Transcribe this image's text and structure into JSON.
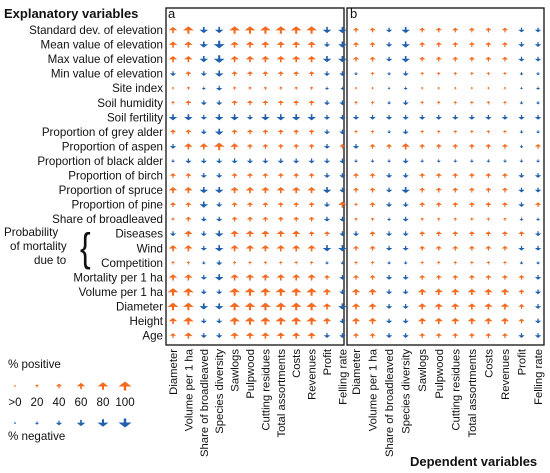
{
  "figure": {
    "y_axis_title": "Explanatory variables",
    "x_axis_title": "Dependent variables",
    "panels": [
      "a",
      "b"
    ],
    "rows": [
      {
        "label": "Standard dev. of elevation"
      },
      {
        "label": "Mean value of elevation"
      },
      {
        "label": "Max value of elevation"
      },
      {
        "label": "Min value of elevation"
      },
      {
        "label": "Site index"
      },
      {
        "label": "Soil humidity"
      },
      {
        "label": "Soil fertility"
      },
      {
        "label": "Proportion of grey alder"
      },
      {
        "label": "Proportion of aspen"
      },
      {
        "label": "Proportion of black alder"
      },
      {
        "label": "Proportion of birch"
      },
      {
        "label": "Proportion of spruce"
      },
      {
        "label": "Proportion of pine"
      },
      {
        "label": "Share of broadleaved"
      },
      {
        "label": "Diseases"
      },
      {
        "label": "Wind"
      },
      {
        "label": "Competition"
      },
      {
        "label": "Mortality per 1 ha"
      },
      {
        "label": "Volume per 1 ha"
      },
      {
        "label": "Diameter"
      },
      {
        "label": "Height"
      },
      {
        "label": "Age"
      }
    ],
    "mortality_group": {
      "line1": "Probability",
      "line2": "of mortality",
      "line3": "due to",
      "brace": "{"
    },
    "columns": [
      "Diameter",
      "Volume per 1 ha",
      "Share of broadleaved",
      "Species diversity",
      "Sawlogs",
      "Pulpwood",
      "Cutting residues",
      "Total assortments",
      "Costs",
      "Revenues",
      "Profit",
      "Felling rate"
    ],
    "legend": {
      "positive_label": "% positive",
      "negative_label": "% negative",
      "levels": [
        ">0",
        "20",
        "40",
        "60",
        "80",
        "100"
      ],
      "positive_color": "#F26B21",
      "negative_color": "#1F5FAD"
    }
  },
  "chart_data": {
    "type": "heatmap",
    "encoding": "arrow glyph: up/orange = % positive, down/blue = % negative; glyph size = percent (0-100)",
    "rows": [
      "Standard dev. of elevation",
      "Mean value of elevation",
      "Max value of elevation",
      "Min value of elevation",
      "Site index",
      "Soil humidity",
      "Soil fertility",
      "Proportion of grey alder",
      "Proportion of aspen",
      "Proportion of black alder",
      "Proportion of birch",
      "Proportion of spruce",
      "Proportion of pine",
      "Share of broadleaved",
      "Diseases",
      "Wind",
      "Competition",
      "Mortality per 1 ha",
      "Volume per 1 ha",
      "Diameter",
      "Height",
      "Age"
    ],
    "columns": [
      "Diameter",
      "Volume per 1 ha",
      "Share of broadleaved",
      "Species diversity",
      "Sawlogs",
      "Pulpwood",
      "Cutting residues",
      "Total assortments",
      "Costs",
      "Revenues",
      "Profit",
      "Felling rate"
    ],
    "panels": [
      {
        "name": "a",
        "values": [
          [
            60,
            80,
            -60,
            -60,
            80,
            80,
            80,
            80,
            80,
            80,
            -60,
            -60
          ],
          [
            60,
            60,
            -60,
            -80,
            60,
            60,
            60,
            60,
            60,
            60,
            -40,
            -60
          ],
          [
            60,
            60,
            -60,
            -80,
            60,
            60,
            60,
            60,
            60,
            60,
            -60,
            -60
          ],
          [
            -40,
            40,
            -40,
            -60,
            40,
            40,
            40,
            40,
            40,
            40,
            -40,
            -40
          ],
          [
            10,
            20,
            -20,
            -40,
            20,
            20,
            20,
            20,
            20,
            20,
            -20,
            -20
          ],
          [
            20,
            40,
            -40,
            -40,
            40,
            40,
            40,
            40,
            40,
            40,
            -40,
            -40
          ],
          [
            -60,
            -60,
            -40,
            -60,
            -60,
            -40,
            -60,
            -60,
            -60,
            -60,
            -40,
            -40
          ],
          [
            40,
            40,
            -40,
            -60,
            40,
            40,
            40,
            40,
            40,
            40,
            -40,
            -40
          ],
          [
            -40,
            60,
            60,
            80,
            60,
            40,
            40,
            40,
            40,
            40,
            -40,
            40
          ],
          [
            -20,
            -40,
            -40,
            -40,
            -40,
            -40,
            -40,
            -40,
            -40,
            -40,
            -40,
            -40
          ],
          [
            40,
            40,
            -40,
            -40,
            40,
            40,
            40,
            40,
            40,
            40,
            -40,
            -40
          ],
          [
            60,
            60,
            -60,
            -60,
            60,
            60,
            60,
            60,
            60,
            60,
            -60,
            -40
          ],
          [
            40,
            40,
            -60,
            -40,
            40,
            40,
            40,
            40,
            40,
            40,
            -40,
            60
          ],
          [
            20,
            40,
            -40,
            -40,
            40,
            40,
            40,
            40,
            40,
            40,
            -40,
            -40
          ],
          [
            -40,
            60,
            -40,
            -60,
            60,
            60,
            60,
            60,
            60,
            40,
            40,
            -40
          ],
          [
            60,
            60,
            -40,
            -60,
            60,
            60,
            60,
            60,
            60,
            60,
            -60,
            -60
          ],
          [
            20,
            20,
            -20,
            -40,
            20,
            20,
            20,
            20,
            20,
            20,
            -20,
            -20
          ],
          [
            60,
            60,
            -40,
            -60,
            60,
            60,
            60,
            60,
            60,
            60,
            40,
            -40
          ],
          [
            80,
            80,
            -40,
            -40,
            80,
            80,
            80,
            80,
            80,
            80,
            60,
            -40
          ],
          [
            80,
            80,
            -60,
            -60,
            80,
            80,
            80,
            80,
            80,
            80,
            60,
            -60
          ],
          [
            60,
            80,
            -40,
            -40,
            80,
            80,
            80,
            80,
            80,
            80,
            60,
            -40
          ],
          [
            40,
            60,
            -40,
            -40,
            60,
            60,
            60,
            60,
            60,
            60,
            -40,
            -40
          ]
        ]
      },
      {
        "name": "b",
        "values": [
          [
            40,
            40,
            -40,
            -60,
            40,
            40,
            40,
            40,
            40,
            40,
            -40,
            -40
          ],
          [
            40,
            40,
            -40,
            -60,
            40,
            40,
            40,
            40,
            40,
            40,
            -40,
            -40
          ],
          [
            40,
            40,
            -40,
            -60,
            40,
            40,
            40,
            40,
            40,
            40,
            -40,
            -40
          ],
          [
            -20,
            20,
            -20,
            -40,
            20,
            20,
            20,
            20,
            20,
            20,
            -20,
            -20
          ],
          [
            10,
            10,
            -10,
            -20,
            10,
            10,
            10,
            10,
            10,
            10,
            -10,
            -20
          ],
          [
            20,
            20,
            -20,
            -40,
            20,
            20,
            20,
            20,
            20,
            20,
            -20,
            -20
          ],
          [
            -40,
            -40,
            -40,
            -40,
            -40,
            -40,
            -40,
            -40,
            -40,
            -40,
            -40,
            -40
          ],
          [
            20,
            20,
            -20,
            -40,
            20,
            20,
            20,
            20,
            20,
            20,
            -20,
            -20
          ],
          [
            -40,
            40,
            40,
            60,
            40,
            40,
            40,
            40,
            40,
            40,
            -20,
            40
          ],
          [
            -20,
            -20,
            -20,
            -40,
            -20,
            -20,
            -20,
            -20,
            -20,
            -20,
            -20,
            -20
          ],
          [
            40,
            40,
            -40,
            -40,
            40,
            40,
            40,
            40,
            40,
            40,
            -40,
            -40
          ],
          [
            40,
            40,
            -40,
            -60,
            40,
            40,
            40,
            40,
            40,
            40,
            -40,
            -40
          ],
          [
            20,
            40,
            -40,
            -40,
            40,
            40,
            40,
            40,
            40,
            40,
            -40,
            40
          ],
          [
            20,
            20,
            -20,
            -40,
            20,
            20,
            20,
            20,
            20,
            20,
            -20,
            -20
          ],
          [
            -40,
            40,
            -40,
            -40,
            40,
            40,
            40,
            40,
            40,
            40,
            40,
            -40
          ],
          [
            40,
            40,
            -40,
            -40,
            40,
            40,
            40,
            40,
            40,
            40,
            -40,
            -40
          ],
          [
            20,
            20,
            -20,
            -20,
            20,
            20,
            20,
            20,
            20,
            20,
            -20,
            -20
          ],
          [
            40,
            40,
            -40,
            -40,
            40,
            40,
            40,
            40,
            40,
            40,
            40,
            -40
          ],
          [
            60,
            60,
            -40,
            -40,
            60,
            60,
            60,
            60,
            60,
            60,
            40,
            -40
          ],
          [
            60,
            60,
            -40,
            -40,
            60,
            60,
            60,
            60,
            60,
            60,
            40,
            -40
          ],
          [
            60,
            60,
            -40,
            -40,
            60,
            60,
            60,
            60,
            60,
            60,
            40,
            -40
          ],
          [
            40,
            40,
            -40,
            -40,
            40,
            40,
            40,
            40,
            40,
            40,
            -40,
            -40
          ]
        ]
      }
    ]
  }
}
